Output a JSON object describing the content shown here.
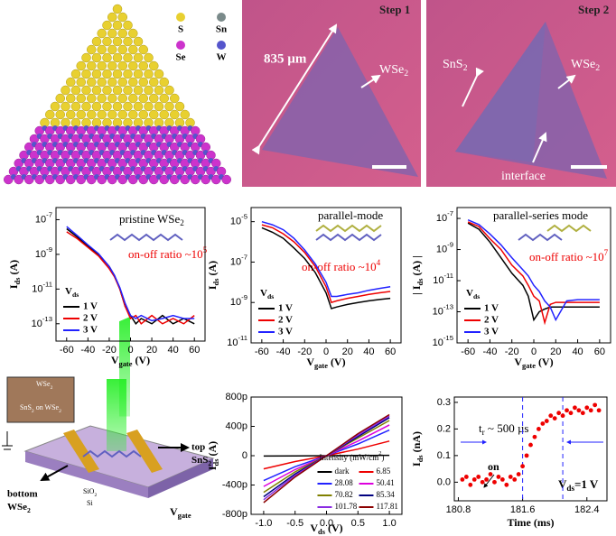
{
  "chart_data": [
    {
      "type": "line",
      "log_y": true,
      "title": "pristine WSe2",
      "annotation": "on-off ratio ~105",
      "xlabel": "Vgate (V)",
      "ylabel": "Ids (A)",
      "legend_title": "Vds",
      "legend": "lower left",
      "x": [
        -60,
        -50,
        -40,
        -30,
        -20,
        -15,
        -10,
        -5,
        0,
        5,
        10,
        20,
        30,
        40,
        50,
        60
      ],
      "series": [
        {
          "name": "1 V",
          "color": "#000000",
          "values": [
            3e-08,
            1e-08,
            3e-09,
            1e-09,
            2e-10,
            6e-11,
            1e-11,
            1e-12,
            3e-13,
            1e-13,
            2e-13,
            1e-13,
            3e-13,
            1e-13,
            2e-13,
            1e-13
          ]
        },
        {
          "name": "2 V",
          "color": "#ee0000",
          "values": [
            2e-08,
            8e-09,
            2.5e-09,
            8e-10,
            1.5e-10,
            5e-11,
            1e-11,
            1e-12,
            2e-13,
            3e-13,
            1e-13,
            3e-13,
            1e-13,
            2e-13,
            1e-13,
            3e-13
          ]
        },
        {
          "name": "3 V",
          "color": "#2222ff",
          "values": [
            4e-08,
            1.2e-08,
            3.5e-09,
            1.1e-09,
            2e-10,
            6e-11,
            1.2e-11,
            1.5e-12,
            3e-13,
            2e-13,
            3e-13,
            1.5e-13,
            2e-13,
            3e-13,
            2e-13,
            2e-13
          ]
        }
      ],
      "xlim": [
        -70,
        70
      ],
      "xticks": [
        -60,
        -40,
        -20,
        0,
        20,
        40,
        60
      ],
      "ylim": [
        1e-14,
        5e-07
      ],
      "yticks": [
        {
          "value": 1e-07,
          "label": "10-7"
        },
        {
          "value": 1e-09,
          "label": "10-9"
        },
        {
          "value": 1e-11,
          "label": "10-11"
        },
        {
          "value": 1e-13,
          "label": "10-13"
        }
      ]
    },
    {
      "type": "line",
      "log_y": true,
      "title": "parallel-mode",
      "annotation": "on-off ratio ~104",
      "xlabel": "Vgate (V)",
      "ylabel": "Ids (A)",
      "legend_title": "Vds",
      "legend": "lower left",
      "x": [
        -60,
        -50,
        -40,
        -30,
        -20,
        -10,
        0,
        5,
        10,
        20,
        30,
        40,
        50,
        60
      ],
      "series": [
        {
          "name": "1 V",
          "color": "#000000",
          "values": [
            5e-06,
            3e-06,
            1.5e-06,
            5e-07,
            1.5e-07,
            3e-08,
            3e-09,
            5e-10,
            6e-10,
            8e-10,
            1e-09,
            1.2e-09,
            1.4e-09,
            1.6e-09
          ]
        },
        {
          "name": "2 V",
          "color": "#ee0000",
          "values": [
            7e-06,
            5e-06,
            2.5e-06,
            1e-06,
            3e-07,
            6e-08,
            6e-09,
            1e-09,
            1.2e-09,
            1.6e-09,
            2e-09,
            2.5e-09,
            3e-09,
            3.5e-09
          ]
        },
        {
          "name": "3 V",
          "color": "#2222ff",
          "values": [
            1e-05,
            7e-06,
            4e-06,
            1.5e-06,
            4e-07,
            8e-08,
            1e-08,
            2e-09,
            2e-09,
            2.5e-09,
            3e-09,
            4e-09,
            5e-09,
            6e-09
          ]
        }
      ],
      "xlim": [
        -70,
        70
      ],
      "xticks": [
        -60,
        -40,
        -20,
        0,
        20,
        40,
        60
      ],
      "ylim": [
        1e-11,
        5e-05
      ],
      "yticks": [
        {
          "value": 1e-05,
          "label": "10-5"
        },
        {
          "value": 1e-07,
          "label": "10-7"
        },
        {
          "value": 1e-09,
          "label": "10-9"
        },
        {
          "value": 1e-11,
          "label": "10-11"
        }
      ]
    },
    {
      "type": "line",
      "log_y": true,
      "title": "parallel-series mode",
      "annotation": "on-off ratio ~107",
      "xlabel": "Vgate (V)",
      "ylabel": "| Ids (A) |",
      "legend_title": "Vds",
      "legend": "lower left",
      "x": [
        -60,
        -50,
        -40,
        -30,
        -20,
        -10,
        -5,
        0,
        5,
        10,
        15,
        20,
        30,
        40,
        50,
        60
      ],
      "series": [
        {
          "name": "1 V",
          "color": "#000000",
          "values": [
            5e-08,
            2e-08,
            3e-09,
            3e-10,
            3e-11,
            5e-12,
            1e-12,
            3e-14,
            1e-13,
            1.5e-13,
            2e-13,
            2e-13,
            2e-13,
            2e-13,
            2e-13,
            2e-13
          ]
        },
        {
          "name": "2 V",
          "color": "#ee0000",
          "values": [
            6e-08,
            3e-08,
            5e-09,
            1e-09,
            1e-10,
            2e-11,
            5e-12,
            1e-12,
            5e-13,
            2e-14,
            3e-13,
            4e-13,
            4e-13,
            4e-13,
            4e-13,
            4e-13
          ]
        },
        {
          "name": "3 V",
          "color": "#2222ff",
          "values": [
            8e-08,
            4e-08,
            1e-08,
            2e-09,
            3e-10,
            5e-11,
            2e-11,
            5e-12,
            2e-12,
            5e-13,
            2e-13,
            3e-14,
            5e-13,
            6e-13,
            6e-13,
            6e-13
          ]
        }
      ],
      "xlim": [
        -70,
        70
      ],
      "xticks": [
        -60,
        -40,
        -20,
        0,
        20,
        40,
        60
      ],
      "ylim": [
        1e-15,
        5e-07
      ],
      "yticks": [
        {
          "value": 1e-07,
          "label": "10-7"
        },
        {
          "value": 1e-09,
          "label": "10-9"
        },
        {
          "value": 1e-11,
          "label": "10-11"
        },
        {
          "value": 1e-13,
          "label": "10-13"
        },
        {
          "value": 1e-15,
          "label": "10-15"
        }
      ]
    },
    {
      "type": "line",
      "log_y": false,
      "xlabel": "Vds (V)",
      "ylabel": "Ids (A)",
      "legend_title": "Intensity (mW/cm2)",
      "legend": "lower right",
      "x": [
        -1,
        -0.5,
        0,
        0.5,
        1
      ],
      "series": [
        {
          "name": "dark",
          "color": "#000000",
          "values": [
            -5e-12,
            -2e-12,
            0,
            2e-12,
            5e-12
          ]
        },
        {
          "name": "6.85",
          "color": "#ee0000",
          "values": [
            -1.8e-10,
            -8e-11,
            0,
            9e-11,
            2e-10
          ]
        },
        {
          "name": "28.08",
          "color": "#2222ff",
          "values": [
            -3.4e-10,
            -1.5e-10,
            0,
            1.6e-10,
            3.5e-10
          ]
        },
        {
          "name": "50.41",
          "color": "#dd00dd",
          "values": [
            -4.2e-10,
            -1.9e-10,
            0,
            2e-10,
            4.2e-10
          ]
        },
        {
          "name": "70.82",
          "color": "#808000",
          "values": [
            -5e-10,
            -2.2e-10,
            0,
            2.4e-10,
            4.8e-10
          ]
        },
        {
          "name": "85.34",
          "color": "#000080",
          "values": [
            -5.6e-10,
            -2.5e-10,
            0,
            2.6e-10,
            5.2e-10
          ]
        },
        {
          "name": "101.78",
          "color": "#8a2be2",
          "values": [
            -6e-10,
            -2.7e-10,
            0,
            2.8e-10,
            5.4e-10
          ]
        },
        {
          "name": "117.81",
          "color": "#8b0000",
          "values": [
            -6.4e-10,
            -2.9e-10,
            0,
            3e-10,
            5.6e-10
          ]
        }
      ],
      "xlim": [
        -1.2,
        1.2
      ],
      "xticks": [
        {
          "value": -1,
          "label": "-1.0"
        },
        -0.5,
        {
          "value": 0,
          "label": "0.0"
        },
        0.5,
        {
          "value": 1,
          "label": "1.0"
        }
      ],
      "ylim": [
        -8e-10,
        8e-10
      ],
      "yticks": [
        {
          "value": -8e-10,
          "label": "-800p"
        },
        {
          "value": -4e-10,
          "label": "-400p"
        },
        0,
        {
          "value": 4e-10,
          "label": "400p"
        },
        {
          "value": 8e-10,
          "label": "800p"
        }
      ]
    },
    {
      "type": "scatter",
      "color": "#ee0000",
      "xlabel": "Time (ms)",
      "ylabel": "Ids (nA)",
      "annotation": "tr ~ 500 µs",
      "marker_label": "on",
      "condition": "Vds=1 V",
      "x": [
        180.85,
        180.9,
        180.95,
        181.0,
        181.05,
        181.1,
        181.15,
        181.2,
        181.25,
        181.3,
        181.35,
        181.4,
        181.45,
        181.5,
        181.55,
        181.6,
        181.65,
        181.7,
        181.75,
        181.8,
        181.85,
        181.9,
        181.95,
        182.0,
        182.05,
        182.1,
        182.15,
        182.2,
        182.25,
        182.3,
        182.35,
        182.4,
        182.45,
        182.5,
        182.55
      ],
      "values": [
        0.01,
        0.02,
        -0.01,
        0.01,
        0.02,
        0.0,
        0.01,
        0.03,
        0.0,
        0.02,
        0.01,
        -0.01,
        0.02,
        0.01,
        0.03,
        0.06,
        0.1,
        0.14,
        0.17,
        0.2,
        0.22,
        0.23,
        0.25,
        0.24,
        0.26,
        0.25,
        0.27,
        0.26,
        0.28,
        0.27,
        0.26,
        0.28,
        0.27,
        0.29,
        0.27
      ],
      "vlines": [
        181.6,
        182.1
      ],
      "xlim": [
        180.75,
        182.65
      ],
      "xticks": [
        180.8,
        181.6,
        182.4
      ],
      "ylim": [
        -0.07,
        0.32
      ],
      "yticks": [
        {
          "value": 0,
          "label": "0.0"
        },
        0.1,
        0.2,
        0.3
      ]
    }
  ],
  "illustrations": {
    "structure_legend": [
      "S",
      "Sn",
      "Se",
      "W"
    ],
    "step1": {
      "title": "Step 1",
      "scale": "835 µm",
      "label": "WSe2"
    },
    "step2": {
      "title": "Step 2",
      "labels": [
        "SnS2",
        "WSe2",
        "interface"
      ]
    },
    "device": {
      "inset_top": "WSe2",
      "inset_bottom": "SnS2 on WSe2",
      "top": "top",
      "top_material": "SnS2",
      "bottom": "bottom",
      "bottom_material": "WSe2",
      "oxide": "SiO2",
      "substrate": "Si",
      "gate": "Vgate"
    }
  }
}
